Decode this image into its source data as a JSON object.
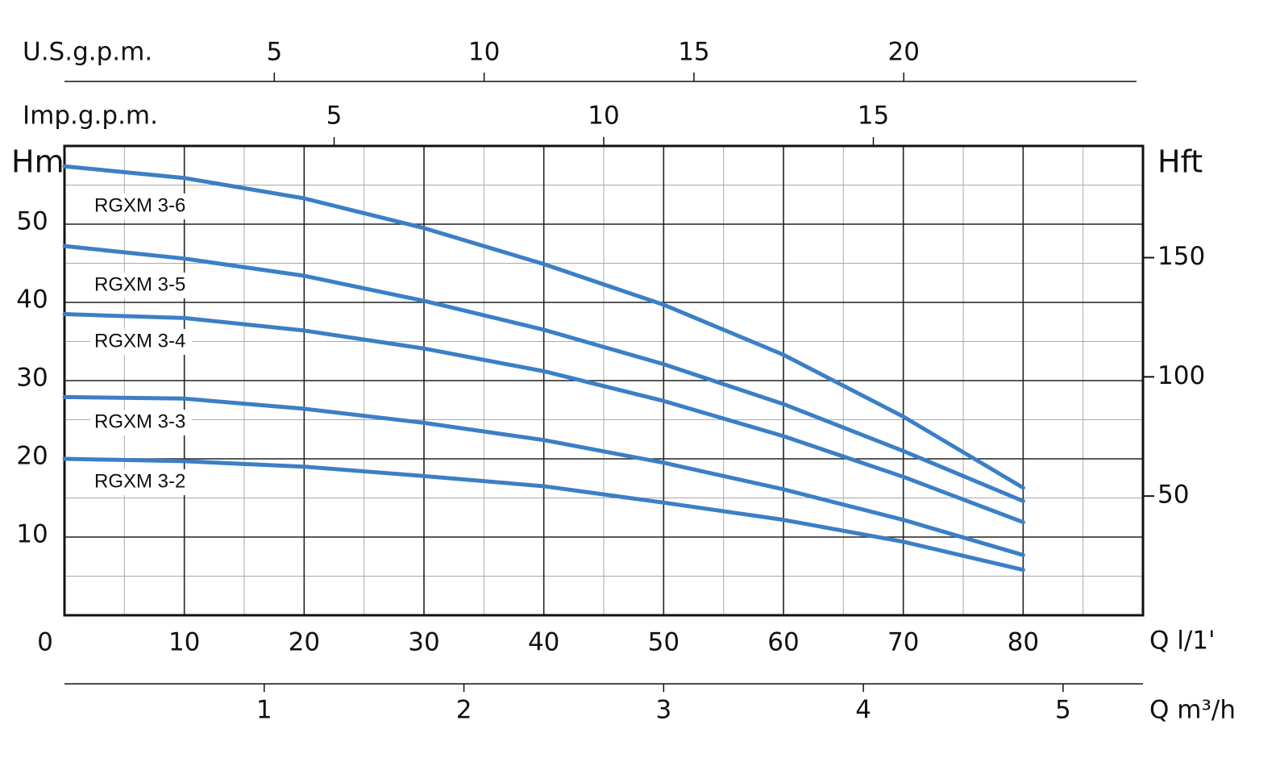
{
  "chart_data": {
    "type": "line",
    "x_label": "Q l/1'",
    "y_label": "Hm",
    "y2_label": "Hft",
    "x": [
      0,
      10,
      20,
      30,
      40,
      50,
      60,
      70,
      80
    ],
    "xlim": [
      0,
      90
    ],
    "xticks": [
      0,
      10,
      20,
      30,
      40,
      50,
      60,
      70,
      80
    ],
    "xminor": [
      5,
      15,
      25,
      35,
      45,
      55,
      65,
      75,
      85
    ],
    "ylim": [
      0,
      60
    ],
    "yticks": [
      10,
      20,
      30,
      40,
      50
    ],
    "yminor": [
      5,
      15,
      25,
      35,
      45,
      55
    ],
    "y2lim": [
      0,
      196.85
    ],
    "y2ticks": [
      50,
      100,
      150
    ],
    "grid": true,
    "color": "#3b7fc6",
    "extra_axes": [
      {
        "label": "U.S.g.p.m.",
        "lim": [
          0,
          25.7
        ],
        "ticks": [
          5,
          10,
          15,
          20
        ]
      },
      {
        "label": "Imp.g.p.m.",
        "lim": [
          0,
          20
        ],
        "ticks": [
          5,
          10,
          15
        ]
      },
      {
        "label": "Q m³/h",
        "lim": [
          0,
          5.4
        ],
        "ticks": [
          1,
          2,
          3,
          4,
          5
        ]
      }
    ],
    "series": [
      {
        "name": "RGXM 3-6",
        "values": [
          57.4,
          55.9,
          53.3,
          49.5,
          44.9,
          39.7,
          33.3,
          25.4,
          16.3
        ]
      },
      {
        "name": "RGXM 3-5",
        "values": [
          47.2,
          45.6,
          43.4,
          40.2,
          36.5,
          32.1,
          27.0,
          21.0,
          14.6
        ]
      },
      {
        "name": "RGXM 3-4",
        "values": [
          38.5,
          38.0,
          36.4,
          34.1,
          31.2,
          27.4,
          22.9,
          17.7,
          11.9
        ]
      },
      {
        "name": "RGXM 3-3",
        "values": [
          27.9,
          27.7,
          26.4,
          24.6,
          22.4,
          19.5,
          16.1,
          12.2,
          7.7
        ]
      },
      {
        "name": "RGXM 3-2",
        "values": [
          20.0,
          19.7,
          19.0,
          17.8,
          16.5,
          14.4,
          12.2,
          9.4,
          5.8
        ]
      }
    ]
  }
}
